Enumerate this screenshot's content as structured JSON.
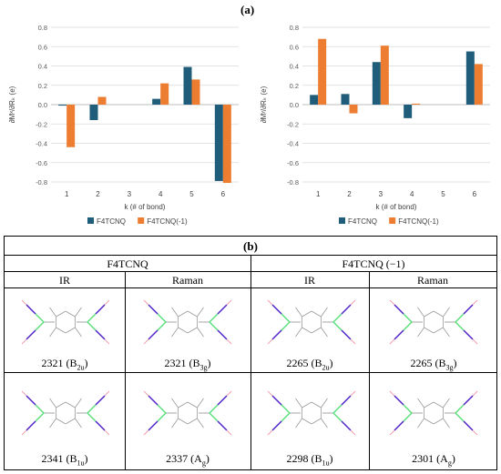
{
  "panel_a_label": "(a)",
  "panel_b_label": "(b)",
  "colors": {
    "F4TCNQ": "#1f5d7a",
    "F4TCNQ(-1)": "#ed7d31",
    "grid": "#d9d9d9",
    "axis": "#bfbfbf"
  },
  "chart_data": [
    {
      "type": "bar",
      "ylabel": "∂Mˣ/∂Rₖ (e)",
      "xlabel": "k (# of bond)",
      "categories": [
        "1",
        "2",
        "3",
        "4",
        "5",
        "6"
      ],
      "ylim": [
        -0.8,
        0.8
      ],
      "yticks": [
        "0.8",
        "0.6",
        "0.4",
        "0.2",
        "0.0",
        "-0.2",
        "-0.4",
        "-0.6",
        "-0.8"
      ],
      "grid": true,
      "legend_position": "bottom",
      "series": [
        {
          "name": "F4TCNQ",
          "values": [
            -0.01,
            -0.16,
            0.0,
            0.06,
            0.39,
            -0.79
          ]
        },
        {
          "name": "F4TCNQ(-1)",
          "values": [
            -0.44,
            0.08,
            0.0,
            0.22,
            0.26,
            -0.81
          ]
        }
      ]
    },
    {
      "type": "bar",
      "ylabel": "∂Mʸ/∂Rₖ (e)",
      "xlabel": "k (# of bond)",
      "categories": [
        "1",
        "2",
        "3",
        "4",
        "5",
        "6"
      ],
      "ylim": [
        -0.8,
        0.8
      ],
      "yticks": [
        "0.8",
        "0.6",
        "0.4",
        "0.2",
        "0.0",
        "-0.2",
        "-0.4",
        "-0.6",
        "-0.8"
      ],
      "grid": true,
      "legend_position": "bottom",
      "series": [
        {
          "name": "F4TCNQ",
          "values": [
            0.1,
            0.11,
            0.44,
            -0.14,
            0.0,
            0.55
          ]
        },
        {
          "name": "F4TCNQ(-1)",
          "values": [
            0.68,
            -0.09,
            0.61,
            0.01,
            0.0,
            0.42
          ]
        }
      ]
    }
  ],
  "table": {
    "groups": [
      "F4TCNQ",
      "F4TCNQ (−1)"
    ],
    "subheaders": [
      "IR",
      "Raman",
      "IR",
      "Raman"
    ],
    "row1": [
      {
        "freq": "2321",
        "sym": "B",
        "sub": "2u"
      },
      {
        "freq": "2321",
        "sym": "B",
        "sub": "3g"
      },
      {
        "freq": "2265",
        "sym": "B",
        "sub": "2u"
      },
      {
        "freq": "2265",
        "sym": "B",
        "sub": "3g"
      }
    ],
    "row2": [
      {
        "freq": "2341",
        "sym": "B",
        "sub": "1u"
      },
      {
        "freq": "2337",
        "sym": "A",
        "sub": "g"
      },
      {
        "freq": "2298",
        "sym": "B",
        "sub": "1u"
      },
      {
        "freq": "2301",
        "sym": "A",
        "sub": "g"
      }
    ]
  },
  "mode_colors": {
    "bond": "#9a9a9a",
    "blue": "#4b1ec8",
    "green": "#55e07a",
    "pink": "#f39aa8"
  }
}
